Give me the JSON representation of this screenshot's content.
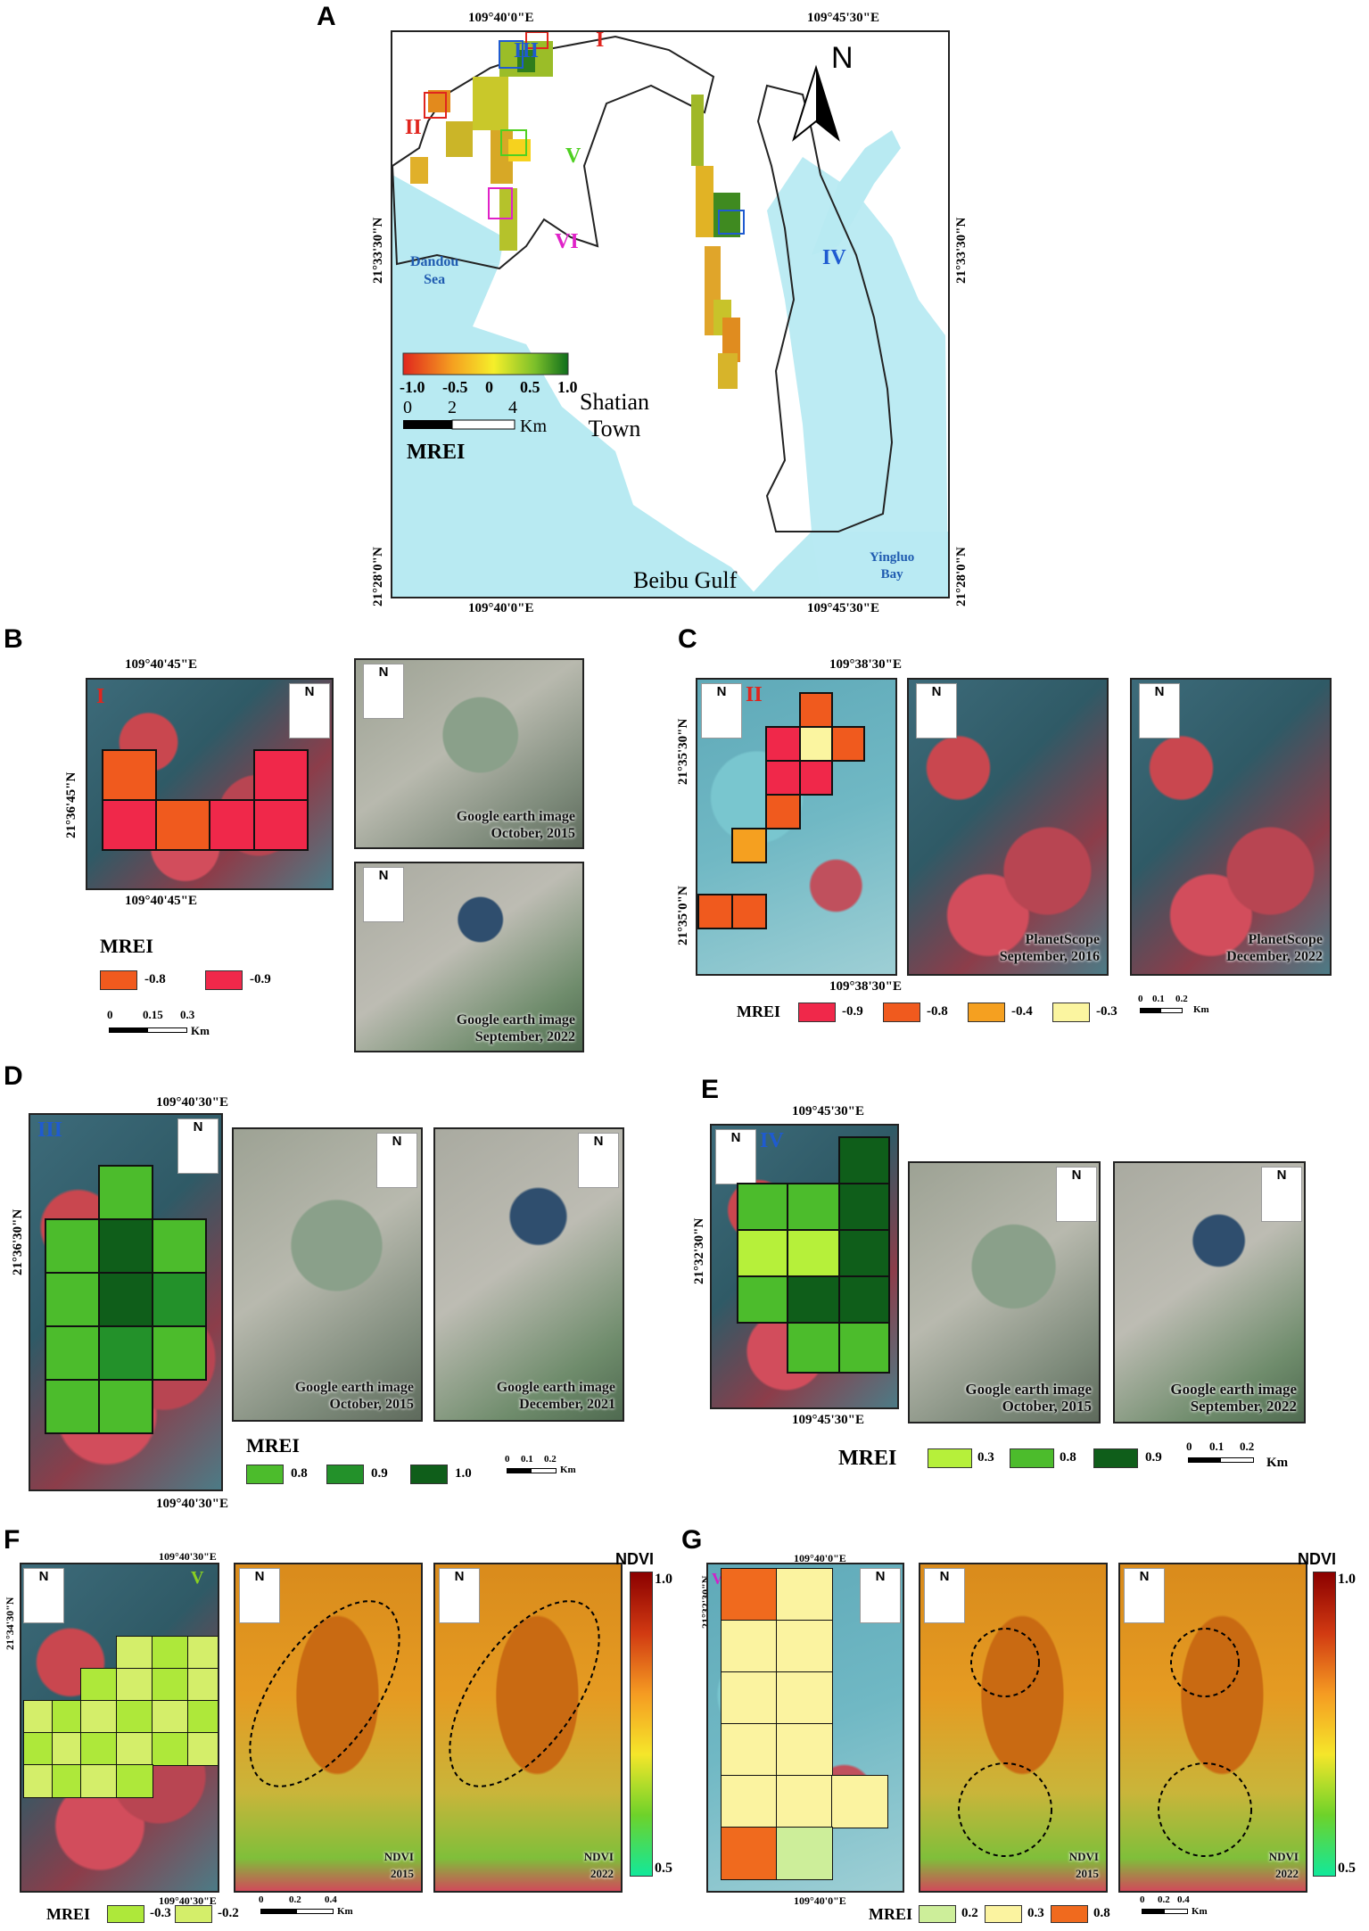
{
  "panelA": {
    "label": "A",
    "coords_top": [
      "109°40'0\"E",
      "109°45'30\"E"
    ],
    "coords_bottom": [
      "109°40'0\"E",
      "109°45'30\"E"
    ],
    "coords_left": [
      "21°33'30\"N",
      "21°28'0\"N"
    ],
    "coords_right": [
      "21°33'30\"N",
      "21°28'0\"N"
    ],
    "north": "N",
    "places": {
      "dandou": "Dandou\nSea",
      "shatian": "Shatian\nTown",
      "beibu": "Beibu Gulf",
      "yingluo": "Yingluo\nBay"
    },
    "regions": [
      "I",
      "II",
      "III",
      "IV",
      "V",
      "VI"
    ],
    "legend_title": "MREI",
    "legend_ticks": [
      "-1.0",
      "-0.5",
      "0",
      "0.5",
      "1.0"
    ],
    "scale_ticks": [
      "0",
      "2",
      "4"
    ],
    "scale_unit": "Km"
  },
  "panelB": {
    "label": "B",
    "region": "I",
    "coord_top": "109°40'45\"E",
    "coord_bottom": "109°40'45\"E",
    "coord_left": "21°36'45\"N",
    "img1": "Google earth image\nOctober, 2015",
    "img2": "Google earth image\nSeptember, 2022",
    "legend_title": "MREI",
    "legend": [
      {
        "color": "#f05a1e",
        "label": "-0.8"
      },
      {
        "color": "#f0284a",
        "label": "-0.9"
      }
    ],
    "scale_ticks": [
      "0",
      "0.15",
      "0.3"
    ],
    "scale_unit": "Km"
  },
  "panelC": {
    "label": "C",
    "region": "II",
    "coord_top": "109°38'30\"E",
    "coord_bottom": "109°38'30\"E",
    "coord_left": [
      "21°35'30\"N",
      "21°35'0\"N"
    ],
    "img1": "PlanetScope\nSeptember, 2016",
    "img2": "PlanetScope\nDecember, 2022",
    "legend_title": "MREI",
    "legend": [
      {
        "color": "#f0284a",
        "label": "-0.9"
      },
      {
        "color": "#f05a1e",
        "label": "-0.8"
      },
      {
        "color": "#f5a020",
        "label": "-0.4"
      },
      {
        "color": "#fbf5a0",
        "label": "-0.3"
      }
    ],
    "scale_ticks": [
      "0",
      "0.1",
      "0.2"
    ],
    "scale_unit": "Km"
  },
  "panelD": {
    "label": "D",
    "region": "III",
    "coord_top": "109°40'30\"E",
    "coord_bottom": "109°40'30\"E",
    "coord_left": "21°36'30\"N",
    "img1": "Google earth image\nOctober, 2015",
    "img2": "Google earth image\nDecember, 2021",
    "legend_title": "MREI",
    "legend": [
      {
        "color": "#4cbc2c",
        "label": "0.8"
      },
      {
        "color": "#23912a",
        "label": "0.9"
      },
      {
        "color": "#0f5e1a",
        "label": "1.0"
      }
    ],
    "scale_ticks": [
      "0",
      "0.1",
      "0.2"
    ],
    "scale_unit": "Km"
  },
  "panelE": {
    "label": "E",
    "region": "IV",
    "coord_top": "109°45'30\"E",
    "coord_bottom": "109°45'30\"E",
    "coord_left": "21°32'30\"N",
    "img1": "Google earth image\nOctober, 2015",
    "img2": "Google earth image\nSeptember, 2022",
    "legend_title": "MREI",
    "legend": [
      {
        "color": "#b6f03a",
        "label": "0.3"
      },
      {
        "color": "#4cbc2c",
        "label": "0.8"
      },
      {
        "color": "#0f5e1a",
        "label": "0.9"
      }
    ],
    "scale_ticks": [
      "0",
      "0.1",
      "0.2"
    ],
    "scale_unit": "Km"
  },
  "panelF": {
    "label": "F",
    "region": "V",
    "coord_top": "109°40'30\"E",
    "coord_bottom": "109°40'30\"E",
    "coord_left": "21°34'30\"N",
    "ndvi1": "NDVI\n2015",
    "ndvi2": "NDVI\n2022",
    "ndvi_title": "NDVI",
    "ndvi_max": "1.0",
    "ndvi_min": "0.5",
    "legend_title": "MREI",
    "legend": [
      {
        "color": "#aee83a",
        "label": "-0.3"
      },
      {
        "color": "#d4ee6a",
        "label": "-0.2"
      }
    ],
    "scale_ticks": [
      "0",
      "0.2",
      "0.4"
    ],
    "scale_unit": "Km"
  },
  "panelG": {
    "label": "G",
    "region": "VI",
    "coord_top": "109°40'0\"E",
    "coord_bottom": "109°40'0\"E",
    "coord_left": "21°32'30\"N",
    "ndvi1": "NDVI\n2015",
    "ndvi2": "NDVI\n2022",
    "ndvi_title": "NDVI",
    "ndvi_max": "1.0",
    "ndvi_min": "0.5",
    "legend_title": "MREI",
    "legend": [
      {
        "color": "#cdee9a",
        "label": "0.2"
      },
      {
        "color": "#fbf3a0",
        "label": "0.3"
      },
      {
        "color": "#f06a1e",
        "label": "0.8"
      }
    ],
    "scale_ticks": [
      "0",
      "0.2",
      "0.4"
    ],
    "scale_unit": "Km"
  }
}
